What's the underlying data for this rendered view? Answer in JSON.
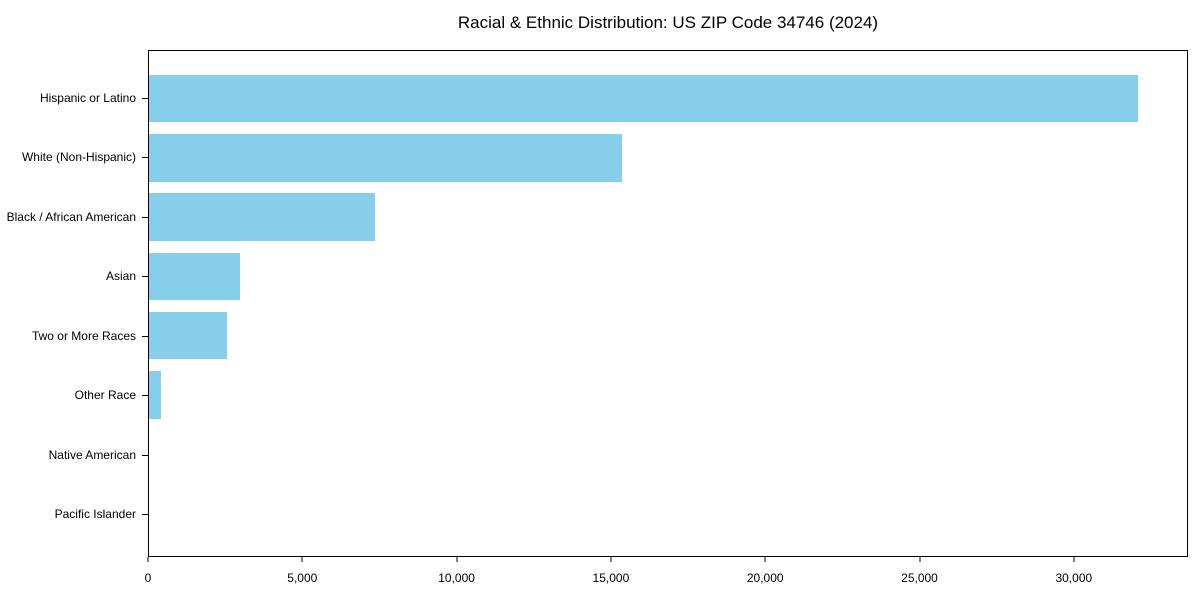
{
  "figure": {
    "background": "#FFFFFF"
  },
  "chart_data": {
    "type": "bar",
    "orientation": "horizontal",
    "title": "Racial & Ethnic Distribution: US ZIP Code 34746 (2024)",
    "categories": [
      "Hispanic or Latino",
      "White (Non-Hispanic)",
      "Black / African American",
      "Asian",
      "Two or More Races",
      "Other Race",
      "Native American",
      "Pacific Islander"
    ],
    "values": [
      32100,
      15350,
      7350,
      2950,
      2530,
      390,
      0,
      0
    ],
    "xlabel": "",
    "ylabel": "",
    "xlim": [
      0,
      33700
    ],
    "xticks": [
      0,
      5000,
      10000,
      15000,
      20000,
      25000,
      30000
    ],
    "xtick_labels": [
      "0",
      "5,000",
      "10,000",
      "15,000",
      "20,000",
      "25,000",
      "30,000"
    ],
    "bar_color": "#87CEEB",
    "axis_color": "#000000",
    "text_color": "#000000",
    "grid": false,
    "legend": false,
    "bar_height_fraction": 0.8
  }
}
